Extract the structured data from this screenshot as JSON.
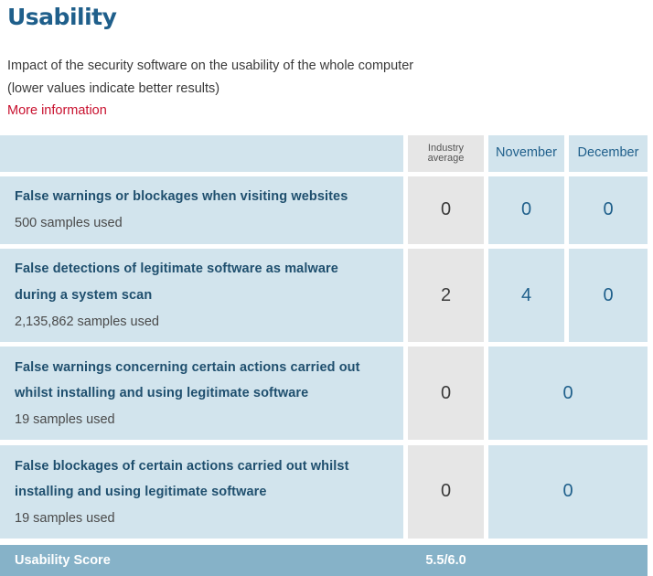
{
  "section": {
    "title": "Usability",
    "description_line1": "Impact of the security software on the usability of the whole computer",
    "description_line2": "(lower values indicate better results)",
    "more_info_link": "More information"
  },
  "table": {
    "headers": {
      "industry_line1": "Industry",
      "industry_line2": "average",
      "col1": "November",
      "col2": "December"
    },
    "rows": [
      {
        "title_line1": "False warnings or blockages when visiting websites",
        "subtitle": "500 samples used",
        "industry": "0",
        "november": "0",
        "december": "0"
      },
      {
        "title_line1": "False detections of legitimate software as malware",
        "title_line2": "during a system scan",
        "subtitle": "2,135,862 samples used",
        "industry": "2",
        "november": "4",
        "december": "0"
      },
      {
        "title_line1": "False warnings concerning certain actions carried out",
        "title_line2": "whilst installing and using legitimate software",
        "subtitle": "19 samples used",
        "industry": "0",
        "combined": "0"
      },
      {
        "title_line1": "False blockages of certain actions carried out whilst",
        "title_line2": "installing and using legitimate software",
        "subtitle": "19 samples used",
        "industry": "0",
        "combined": "0"
      }
    ],
    "score": {
      "label": "Usability Score",
      "value": "5.5/6.0"
    }
  }
}
